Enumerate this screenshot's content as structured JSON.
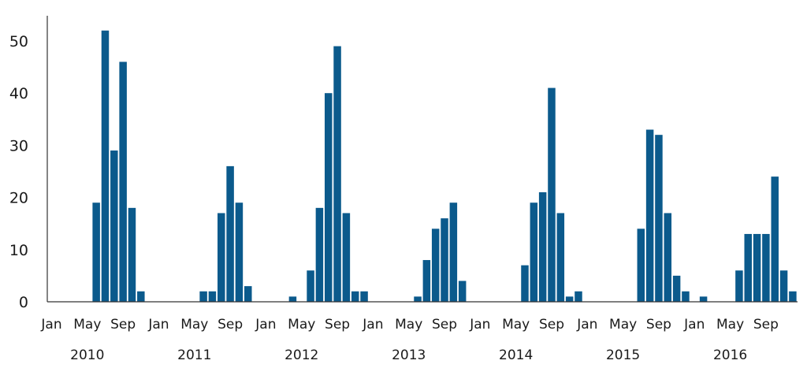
{
  "chart_data": {
    "type": "bar",
    "title": "",
    "xlabel": "",
    "ylabel": "",
    "ylim": [
      0,
      55
    ],
    "yticks": [
      0,
      10,
      20,
      30,
      40,
      50
    ],
    "grid": false,
    "legend": "none",
    "color": "#0b5a8c",
    "months_per_year": 12,
    "x_tick_labels": [
      "Jan",
      "May",
      "Sep"
    ],
    "years": [
      "2010",
      "2011",
      "2012",
      "2013",
      "2014",
      "2015",
      "2016"
    ],
    "series": [
      {
        "values": [
          0,
          0,
          0,
          0,
          0,
          19,
          52,
          29,
          46,
          18,
          2,
          0,
          0,
          0,
          0,
          0,
          0,
          2,
          2,
          17,
          26,
          19,
          3,
          0,
          0,
          0,
          0,
          1,
          0,
          6,
          18,
          40,
          49,
          17,
          2,
          2,
          0,
          0,
          0,
          0,
          0,
          1,
          8,
          14,
          16,
          19,
          4,
          0,
          0,
          0,
          0,
          0,
          0,
          7,
          19,
          21,
          41,
          17,
          1,
          2,
          0,
          0,
          0,
          0,
          0,
          0,
          14,
          33,
          32,
          17,
          5,
          2,
          0,
          1,
          0,
          0,
          0,
          6,
          13,
          13,
          13,
          24,
          6,
          2
        ]
      }
    ]
  }
}
